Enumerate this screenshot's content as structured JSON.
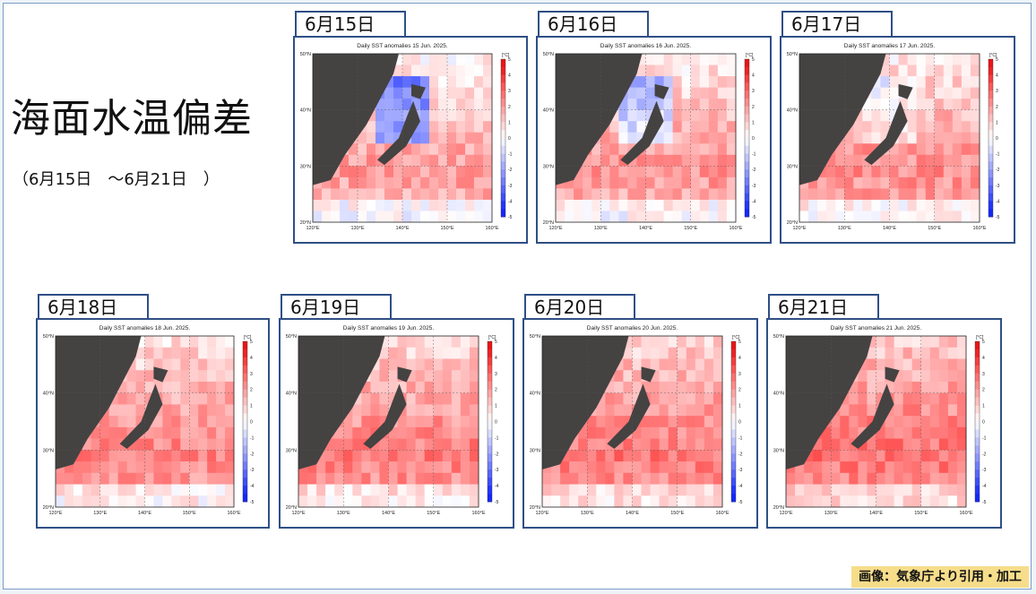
{
  "page": {
    "title": "海面水温偏差",
    "date_range": "（6月15日　～6月21日　）",
    "credit": "画像：気象庁より引用・加工"
  },
  "chart_data": [
    {
      "type": "heatmap",
      "tab_label": "6月15日",
      "title": "Daily SST anomalies 15 Jun. 2025.",
      "unit": "[°C]",
      "y_ticks": [
        "50°N",
        "40°N",
        "30°N",
        "20°N"
      ],
      "x_ticks": [
        "120°E",
        "130°E",
        "140°E",
        "150°E",
        "160°E"
      ],
      "colorbar_ticks": [
        5,
        4,
        3,
        2,
        1,
        0,
        -1,
        -2,
        -3,
        -4,
        -5
      ],
      "xlim": [
        120,
        160
      ],
      "ylim": [
        20,
        50
      ],
      "anomaly_pattern": "weak cool (blue) anomalies east of northern Japan; warm (+2 to +3) band near 30°N"
    },
    {
      "type": "heatmap",
      "tab_label": "6月16日",
      "title": "Daily SST anomalies 16 Jun. 2025.",
      "unit": "[°C]",
      "y_ticks": [
        "50°N",
        "40°N",
        "30°N",
        "20°N"
      ],
      "x_ticks": [
        "120°E",
        "130°E",
        "140°E",
        "150°E",
        "160°E"
      ],
      "colorbar_ticks": [
        5,
        4,
        3,
        2,
        1,
        0,
        -1,
        -2,
        -3,
        -4,
        -5
      ],
      "xlim": [
        120,
        160
      ],
      "ylim": [
        20,
        50
      ],
      "anomaly_pattern": "cool anomalies east of northern Japan; warm band near 30°N"
    },
    {
      "type": "heatmap",
      "tab_label": "6月17日",
      "title": "Daily SST anomalies 17 Jun. 2025.",
      "unit": "[°C]",
      "y_ticks": [
        "50°N",
        "40°N",
        "30°N",
        "20°N"
      ],
      "x_ticks": [
        "120°E",
        "130°E",
        "140°E",
        "150°E",
        "160°E"
      ],
      "colorbar_ticks": [
        5,
        4,
        3,
        2,
        1,
        0,
        -1,
        -2,
        -3,
        -4,
        -5
      ],
      "xlim": [
        120,
        160
      ],
      "ylim": [
        20,
        50
      ],
      "anomaly_pattern": "cool area shrinking; warm anomalies expanding"
    },
    {
      "type": "heatmap",
      "tab_label": "6月18日",
      "title": "Daily SST anomalies 18 Jun. 2025.",
      "unit": "[°C]",
      "y_ticks": [
        "50°N",
        "40°N",
        "30°N",
        "20°N"
      ],
      "x_ticks": [
        "120°E",
        "130°E",
        "140°E",
        "150°E",
        "160°E"
      ],
      "colorbar_ticks": [
        5,
        4,
        3,
        2,
        1,
        0,
        -1,
        -2,
        -3,
        -4,
        -5
      ],
      "xlim": [
        120,
        160
      ],
      "ylim": [
        20,
        50
      ],
      "anomaly_pattern": "widespread warm anomalies (+2 to +4)"
    },
    {
      "type": "heatmap",
      "tab_label": "6月19日",
      "title": "Daily SST anomalies 19 Jun. 2025.",
      "unit": "[°C]",
      "y_ticks": [
        "50°N",
        "40°N",
        "30°N",
        "20°N"
      ],
      "x_ticks": [
        "120°E",
        "130°E",
        "140°E",
        "150°E",
        "160°E"
      ],
      "colorbar_ticks": [
        5,
        4,
        3,
        2,
        1,
        0,
        -1,
        -2,
        -3,
        -4,
        -5
      ],
      "xlim": [
        120,
        160
      ],
      "ylim": [
        20,
        50
      ],
      "anomaly_pattern": "widespread warm anomalies"
    },
    {
      "type": "heatmap",
      "tab_label": "6月20日",
      "title": "Daily SST anomalies 20 Jun. 2025.",
      "unit": "[°C]",
      "y_ticks": [
        "50°N",
        "40°N",
        "30°N",
        "20°N"
      ],
      "x_ticks": [
        "120°E",
        "130°E",
        "140°E",
        "150°E",
        "160°E"
      ],
      "colorbar_ticks": [
        5,
        4,
        3,
        2,
        1,
        0,
        -1,
        -2,
        -3,
        -4,
        -5
      ],
      "xlim": [
        120,
        160
      ],
      "ylim": [
        20,
        50
      ],
      "anomaly_pattern": "widespread warm anomalies (+3 patches)"
    },
    {
      "type": "heatmap",
      "tab_label": "6月21日",
      "title": "Daily SST anomalies 21 Jun. 2025.",
      "unit": "[°C]",
      "y_ticks": [
        "50°N",
        "40°N",
        "30°N",
        "20°N"
      ],
      "x_ticks": [
        "120°E",
        "130°E",
        "140°E",
        "150°E",
        "160°E"
      ],
      "colorbar_ticks": [
        5,
        4,
        3,
        2,
        1,
        0,
        -1,
        -2,
        -3,
        -4,
        -5
      ],
      "xlim": [
        120,
        160
      ],
      "ylim": [
        20,
        50
      ],
      "anomaly_pattern": "widespread warm anomalies (+3 to +4)"
    }
  ]
}
